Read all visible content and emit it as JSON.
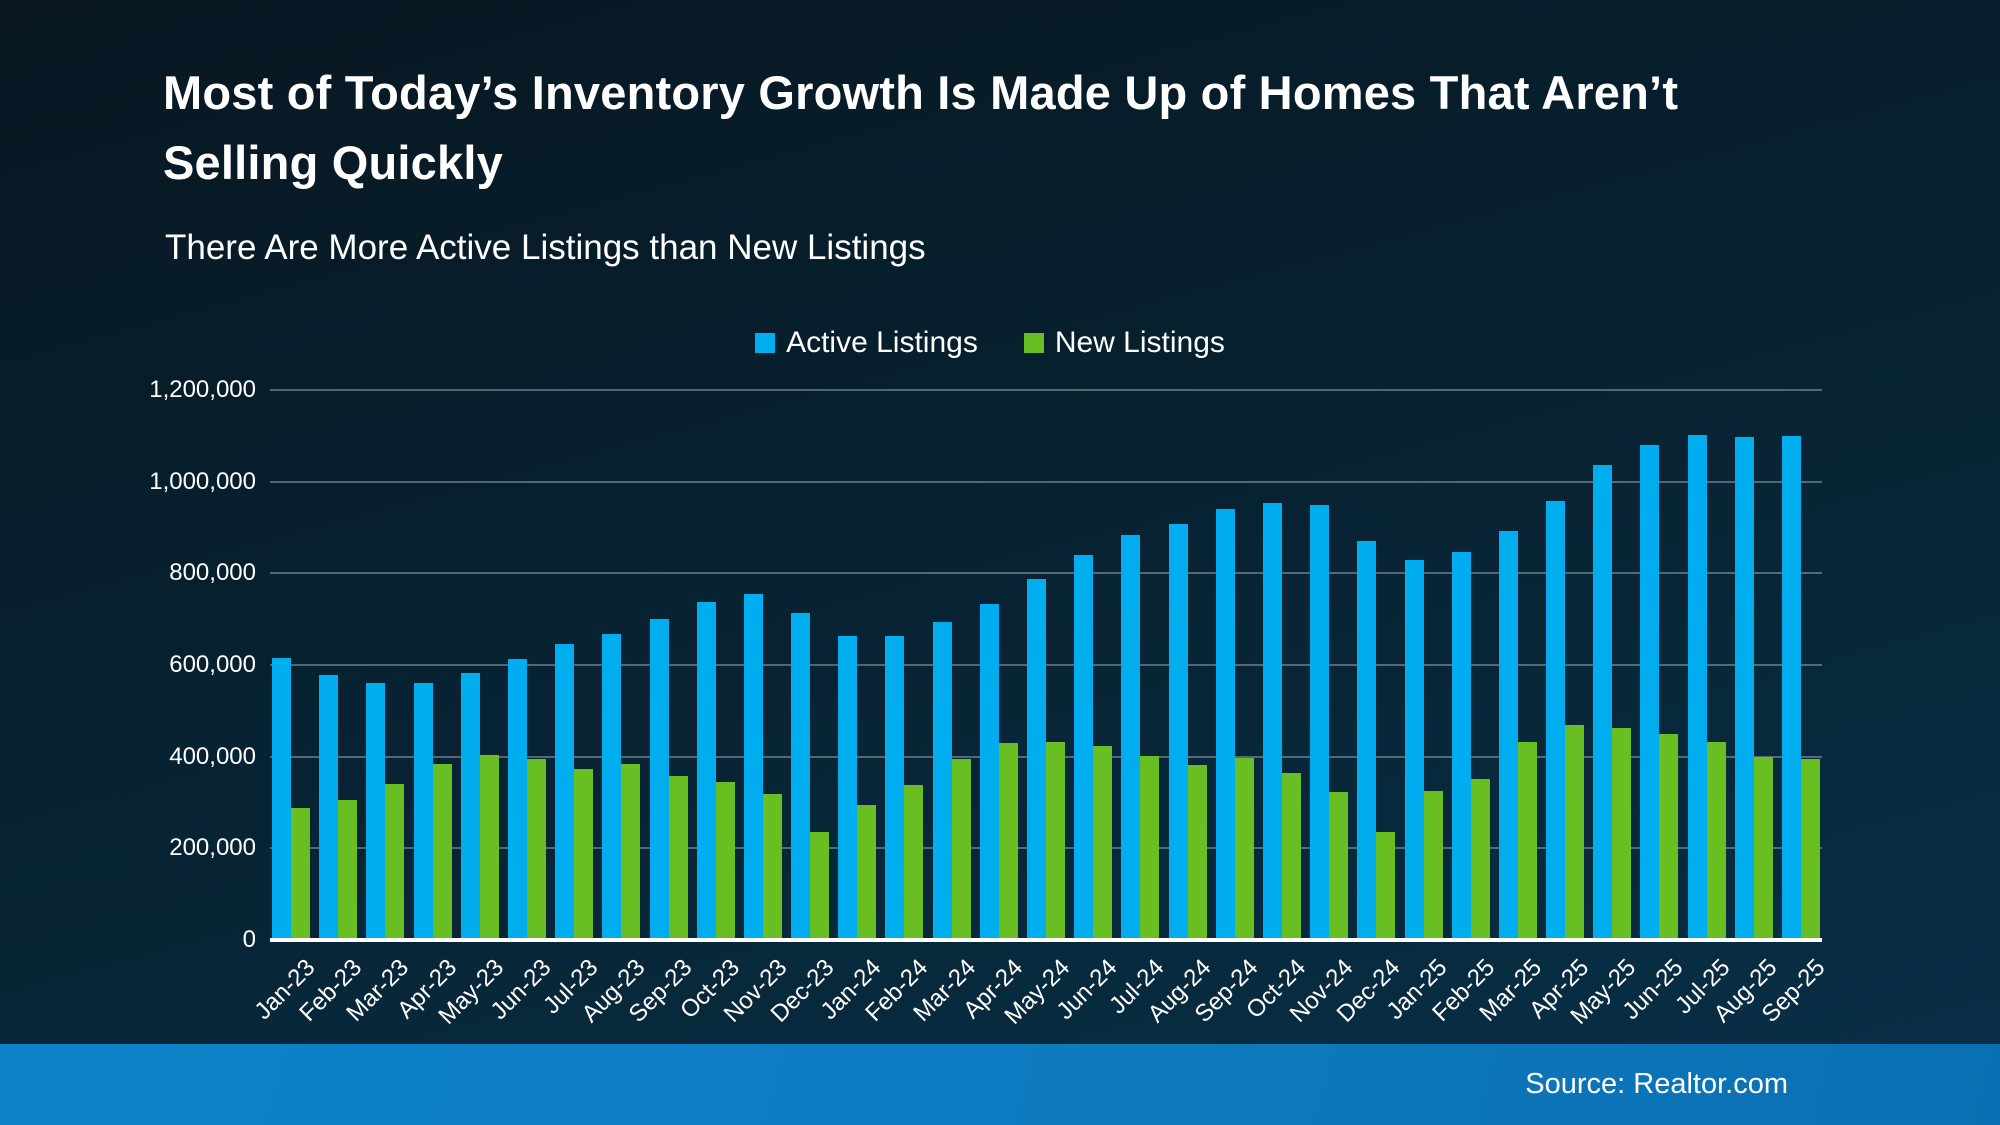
{
  "footer": {
    "source_label": "Source: Realtor.com"
  },
  "chart_data": {
    "type": "bar",
    "title": "Most of Today’s Inventory Growth Is Made Up of Homes That Aren’t Selling Quickly",
    "subtitle": "There Are More Active Listings than New Listings",
    "legend_position": "top",
    "grid": true,
    "background_color": "#07202e",
    "y_axis": {
      "min": 0,
      "max": 1200000,
      "step": 200000,
      "tick_labels": [
        "0",
        "200,000",
        "400,000",
        "600,000",
        "800,000",
        "1,000,000",
        "1,200,000"
      ]
    },
    "categories": [
      "Jan-23",
      "Feb-23",
      "Mar-23",
      "Apr-23",
      "May-23",
      "Jun-23",
      "Jul-23",
      "Aug-23",
      "Sep-23",
      "Oct-23",
      "Nov-23",
      "Dec-23",
      "Jan-24",
      "Feb-24",
      "Mar-24",
      "Apr-24",
      "May-24",
      "Jun-24",
      "Jul-24",
      "Aug-24",
      "Sep-24",
      "Oct-24",
      "Nov-24",
      "Dec-24",
      "Jan-25",
      "Feb-25",
      "Mar-25",
      "Apr-25",
      "May-25",
      "Jun-25",
      "Jul-25",
      "Aug-25",
      "Sep-25"
    ],
    "series": [
      {
        "name": "Active Listings",
        "color": "#00adef",
        "values": [
          616000,
          578000,
          560000,
          560000,
          582000,
          614000,
          645000,
          668000,
          701000,
          737000,
          755000,
          714000,
          663000,
          663000,
          694000,
          733000,
          787000,
          840000,
          884000,
          908000,
          941000,
          953000,
          950000,
          871000,
          829000,
          847000,
          892000,
          959000,
          1036000,
          1081000,
          1101000,
          1097000,
          1099000
        ]
      },
      {
        "name": "New Listings",
        "color": "#69bf22",
        "values": [
          289000,
          305000,
          340000,
          385000,
          404000,
          395000,
          374000,
          385000,
          357000,
          345000,
          318000,
          235000,
          294000,
          338000,
          396000,
          429000,
          432000,
          424000,
          401000,
          383000,
          398000,
          364000,
          323000,
          236000,
          325000,
          352000,
          433000,
          470000,
          463000,
          450000,
          432000,
          399000,
          394000
        ]
      }
    ]
  }
}
